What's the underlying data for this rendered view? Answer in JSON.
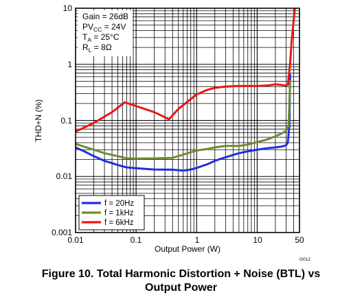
{
  "chart_data": {
    "type": "line",
    "xlabel": "Output Power (W)",
    "ylabel": "THD+N (%)",
    "xscale": "log",
    "yscale": "log",
    "xlim": [
      0.01,
      50
    ],
    "ylim": [
      0.001,
      10
    ],
    "grid": true,
    "x_tick_labels": [
      "0.01",
      "0.1",
      "1",
      "10",
      "50"
    ],
    "y_tick_labels": [
      "0.001",
      "0.01",
      "0.1",
      "1",
      "10"
    ],
    "conditions": [
      {
        "base": "Gain = 26dB",
        "sub": "",
        "rest": ""
      },
      {
        "base": "PV",
        "sub": "CC",
        "rest": " = 24V"
      },
      {
        "base": "T",
        "sub": "A",
        "rest": " = 25°C"
      },
      {
        "base": "R",
        "sub": "L",
        "rest": " = 8Ω"
      }
    ],
    "legend_position": "bottom-left",
    "figure_id": "G012",
    "series": [
      {
        "name": "f = 20Hz",
        "color": "#1f2fe0",
        "x": [
          0.01,
          0.015,
          0.02,
          0.03,
          0.05,
          0.07,
          0.1,
          0.2,
          0.4,
          0.6,
          0.8,
          1.0,
          1.5,
          2,
          3,
          5,
          7,
          10,
          15,
          20,
          25,
          30,
          32,
          34,
          35
        ],
        "y": [
          0.033,
          0.027,
          0.023,
          0.019,
          0.016,
          0.0145,
          0.014,
          0.0133,
          0.0132,
          0.0127,
          0.0133,
          0.0142,
          0.0165,
          0.019,
          0.022,
          0.026,
          0.028,
          0.03,
          0.032,
          0.033,
          0.034,
          0.036,
          0.04,
          0.08,
          0.65
        ]
      },
      {
        "name": "f = 1kHz",
        "color": "#6e8c30",
        "x": [
          0.01,
          0.015,
          0.02,
          0.03,
          0.05,
          0.07,
          0.1,
          0.2,
          0.4,
          0.6,
          0.8,
          1.0,
          1.5,
          2,
          3,
          5,
          7,
          10,
          15,
          20,
          25,
          30,
          33,
          35
        ],
        "y": [
          0.038,
          0.033,
          0.03,
          0.026,
          0.023,
          0.021,
          0.0208,
          0.021,
          0.0215,
          0.0245,
          0.027,
          0.029,
          0.031,
          0.033,
          0.035,
          0.035,
          0.037,
          0.041,
          0.046,
          0.052,
          0.058,
          0.065,
          0.08,
          0.5
        ]
      },
      {
        "name": "f = 6kHz",
        "color": "#e81616",
        "x": [
          0.01,
          0.02,
          0.04,
          0.065,
          0.1,
          0.2,
          0.35,
          0.5,
          0.8,
          1.0,
          1.5,
          2,
          3,
          5,
          10,
          15,
          20,
          25,
          28,
          32,
          35,
          37,
          40,
          42
        ],
        "y": [
          0.063,
          0.09,
          0.14,
          0.21,
          0.18,
          0.14,
          0.105,
          0.16,
          0.24,
          0.29,
          0.35,
          0.38,
          0.4,
          0.41,
          0.41,
          0.42,
          0.44,
          0.43,
          0.42,
          0.43,
          1.0,
          2.5,
          6.0,
          10.0
        ]
      }
    ]
  },
  "caption": {
    "line1": "Figure 10. Total Harmonic Distortion + Noise (BTL) vs",
    "line2": "Output Power"
  }
}
